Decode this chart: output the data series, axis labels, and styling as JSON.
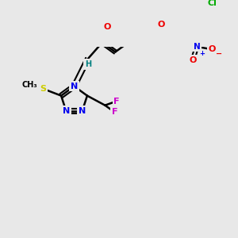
{
  "background_color": "#e8e8e8",
  "bond_color": "#000000",
  "atom_colors": {
    "N": "#0000ee",
    "O": "#ee0000",
    "S": "#cccc00",
    "F": "#cc00cc",
    "Cl": "#00aa00",
    "H": "#008080",
    "C": "#000000"
  },
  "figsize": [
    3.0,
    3.0
  ],
  "dpi": 100
}
